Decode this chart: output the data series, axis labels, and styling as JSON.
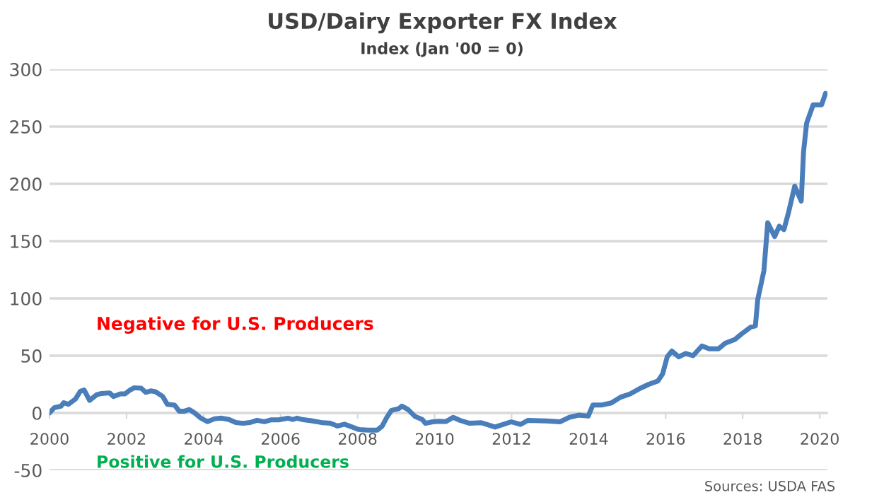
{
  "chart_data": {
    "type": "line",
    "title": "USD/Dairy Exporter FX Index",
    "subtitle": "Index (Jan '00 = 0)",
    "x": [
      2000.0,
      2000.12,
      2000.3,
      2000.37,
      2000.49,
      2000.67,
      2000.8,
      2000.9,
      2001.04,
      2001.23,
      2001.35,
      2001.56,
      2001.66,
      2001.84,
      2001.96,
      2002.08,
      2002.2,
      2002.38,
      2002.5,
      2002.63,
      2002.75,
      2002.94,
      2003.06,
      2003.25,
      2003.37,
      2003.49,
      2003.63,
      2003.77,
      2003.93,
      2004.1,
      2004.29,
      2004.47,
      2004.66,
      2004.84,
      2005.02,
      2005.21,
      2005.39,
      2005.58,
      2005.76,
      2005.95,
      2006.19,
      2006.32,
      2006.43,
      2006.56,
      2006.8,
      2007.05,
      2007.29,
      2007.48,
      2007.66,
      2007.84,
      2008.02,
      2008.27,
      2008.51,
      2008.64,
      2008.76,
      2008.88,
      2009.07,
      2009.15,
      2009.31,
      2009.49,
      2009.68,
      2009.76,
      2009.95,
      2010.11,
      2010.29,
      2010.48,
      2010.66,
      2010.91,
      2011.21,
      2011.57,
      2011.99,
      2012.23,
      2012.42,
      2012.9,
      2013.26,
      2013.5,
      2013.74,
      2013.99,
      2014.11,
      2014.35,
      2014.59,
      2014.83,
      2015.07,
      2015.31,
      2015.56,
      2015.8,
      2015.92,
      2016.04,
      2016.16,
      2016.34,
      2016.52,
      2016.71,
      2016.94,
      2017.13,
      2017.37,
      2017.55,
      2017.79,
      2017.97,
      2018.21,
      2018.33,
      2018.39,
      2018.55,
      2018.65,
      2018.83,
      2018.95,
      2019.07,
      2019.19,
      2019.35,
      2019.52,
      2019.58,
      2019.66,
      2019.83,
      2020.05,
      2020.15
    ],
    "values": [
      0,
      4.5,
      6,
      9,
      7.6,
      12,
      19,
      20,
      11,
      16,
      17,
      17.5,
      14.4,
      16.7,
      16.7,
      19.7,
      22,
      21.6,
      18,
      19.3,
      18.6,
      14.4,
      7.6,
      6.8,
      1.5,
      1.5,
      3,
      0,
      -4.5,
      -7.6,
      -5,
      -4.5,
      -5.7,
      -8.3,
      -9,
      -8.3,
      -6.4,
      -7.6,
      -6,
      -6,
      -4.5,
      -5.7,
      -4.5,
      -5.7,
      -6.8,
      -8.3,
      -9,
      -11.4,
      -9.8,
      -12,
      -14.4,
      -15,
      -15,
      -11.4,
      -3.8,
      2.3,
      3.8,
      6,
      3,
      -3,
      -5.7,
      -9,
      -7.7,
      -7.3,
      -7.5,
      -3.8,
      -6.5,
      -9,
      -8.5,
      -12.3,
      -7.7,
      -10,
      -6.5,
      -7,
      -7.7,
      -3.8,
      -1.9,
      -2.7,
      7,
      7,
      8.8,
      13.8,
      16.5,
      21,
      25,
      28,
      34,
      49,
      54,
      49,
      52,
      50,
      58.5,
      56,
      56,
      61,
      64,
      69,
      75,
      76,
      99,
      124,
      166,
      154,
      163,
      160,
      175,
      198,
      185,
      228,
      253,
      269,
      269,
      279
    ],
    "color": "#4a7ebb",
    "xlim": [
      2000,
      2020.2
    ],
    "xticks": [
      2000,
      2002,
      2004,
      2006,
      2008,
      2010,
      2012,
      2014,
      2016,
      2018,
      2020
    ],
    "ylim": [
      -50,
      300
    ],
    "yticks": [
      -50,
      0,
      50,
      100,
      150,
      200,
      250,
      300
    ],
    "grid": "y",
    "line_style": "solid",
    "annotations": [
      "Negative for U.S. Producers",
      "Positive for U.S. Producers",
      "Sources: USDA FAS"
    ]
  }
}
